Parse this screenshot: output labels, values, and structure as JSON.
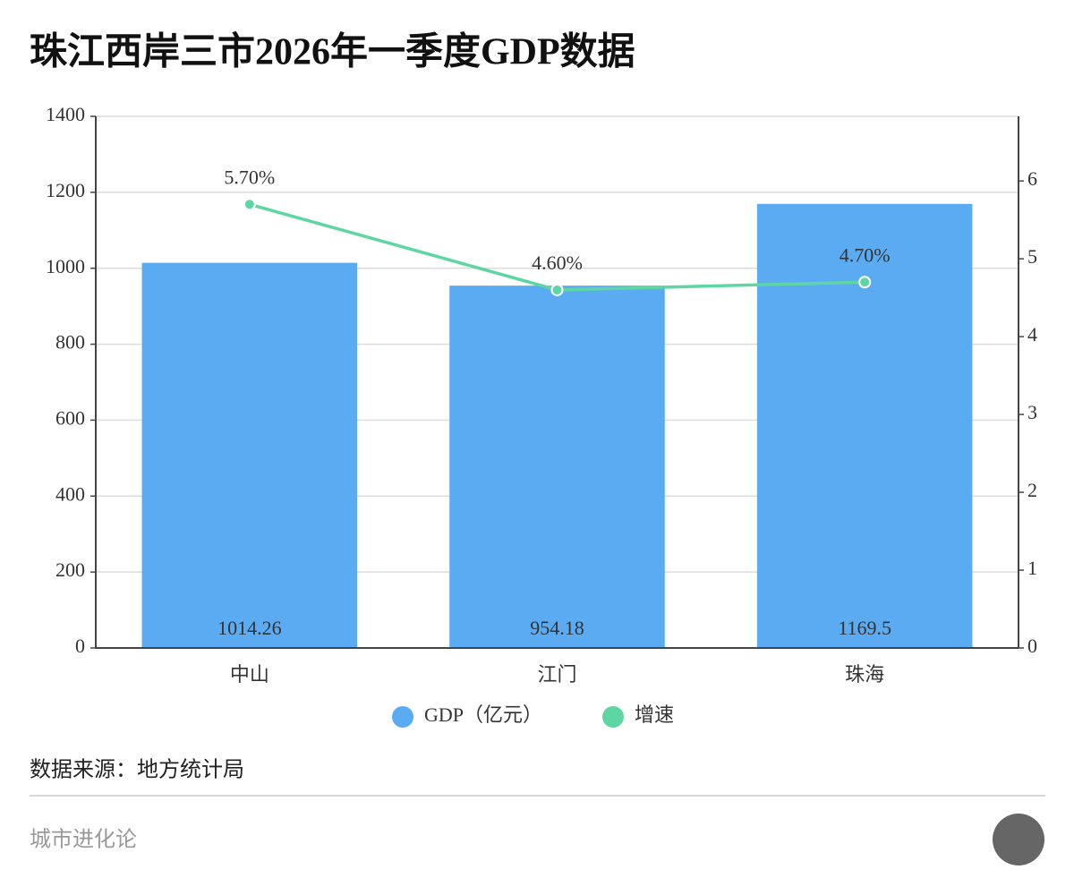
{
  "chart_data": {
    "type": "bar",
    "title": "珠江西岸三市2026年一季度GDP数据",
    "categories": [
      "中山",
      "江门",
      "珠海"
    ],
    "series": [
      {
        "name": "GDP（亿元）",
        "type": "bar",
        "color": "#5aabf2",
        "values": [
          1014.26,
          954.18,
          1169.5
        ]
      },
      {
        "name": "增速",
        "type": "line",
        "axis": "y2",
        "color": "#5dd6a3",
        "values": [
          5.7,
          4.6,
          4.7
        ],
        "value_labels": [
          "5.70%",
          "4.60%",
          "4.70%"
        ]
      }
    ],
    "ylim": [
      0,
      1400
    ],
    "yticks": [
      0,
      200,
      400,
      600,
      800,
      1000,
      1200,
      1400
    ],
    "y2lim": [
      0,
      6.83
    ],
    "y2ticks": [
      0,
      1,
      2,
      3,
      4,
      5,
      6
    ],
    "grid": true,
    "legend": "bottom"
  },
  "footer": {
    "source": "数据来源：地方统计局",
    "brand": "城市进化论"
  }
}
